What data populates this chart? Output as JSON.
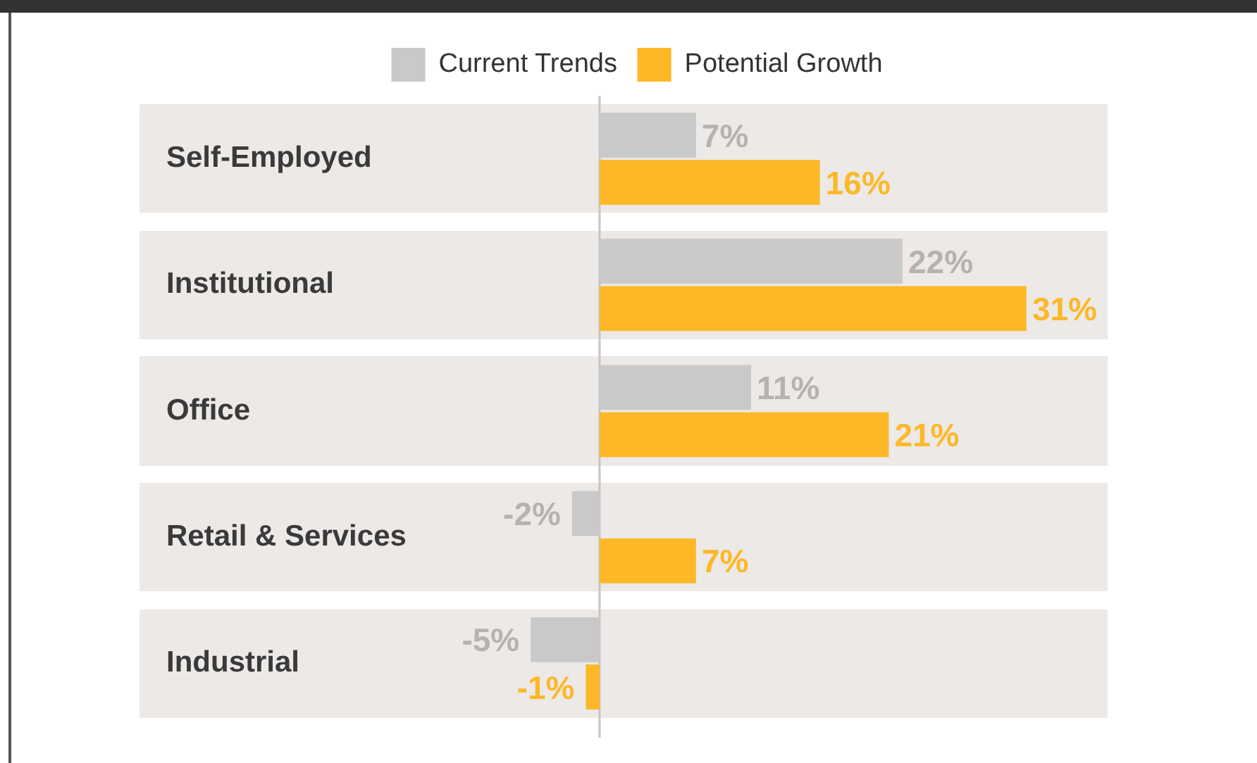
{
  "chart_data": {
    "type": "bar",
    "orientation": "horizontal",
    "categories": [
      "Self-Employed",
      "Institutional",
      "Office",
      "Retail & Services",
      "Industrial"
    ],
    "series": [
      {
        "name": "Current Trends",
        "color": "#c9c9c9",
        "values": [
          7,
          22,
          11,
          -2,
          -5
        ],
        "value_labels": [
          "7%",
          "22%",
          "11%",
          "-2%",
          "-5%"
        ]
      },
      {
        "name": "Potential Growth",
        "color": "#fdb827",
        "values": [
          16,
          31,
          21,
          7,
          -1
        ],
        "value_labels": [
          "16%",
          "31%",
          "21%",
          "7%",
          "-1%"
        ]
      }
    ],
    "tick_labels": "y",
    "legend": "top"
  }
}
